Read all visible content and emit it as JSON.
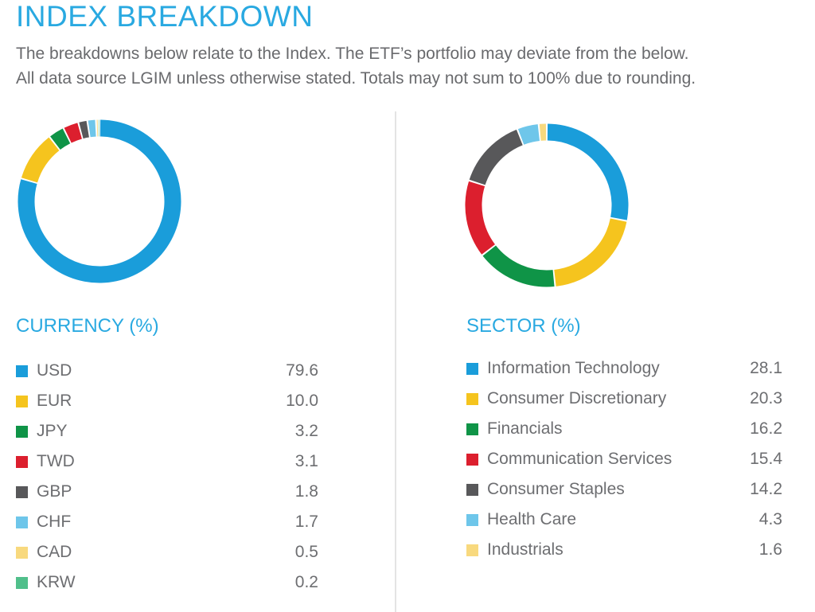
{
  "header": {
    "title": "INDEX BREAKDOWN",
    "subtitle_line1": "The breakdowns below relate to the Index. The ETF’s portfolio may deviate from the below.",
    "subtitle_line2": "All data source LGIM unless otherwise stated. Totals may not sum to 100% due to rounding."
  },
  "colors": {
    "accent": "#29A9E1",
    "text_gray": "#6D6E71",
    "divider": "#E4E4E4"
  },
  "currency": {
    "heading": "CURRENCY (%)",
    "items": [
      {
        "label": "USD",
        "value": "79.6",
        "color": "#1A9DDA"
      },
      {
        "label": "EUR",
        "value": "10.0",
        "color": "#F5C41E"
      },
      {
        "label": "JPY",
        "value": "3.2",
        "color": "#0F9447"
      },
      {
        "label": "TWD",
        "value": "3.1",
        "color": "#DC1F2E"
      },
      {
        "label": "GBP",
        "value": "1.8",
        "color": "#58585A"
      },
      {
        "label": "CHF",
        "value": "1.7",
        "color": "#6EC6EA"
      },
      {
        "label": "CAD",
        "value": "0.5",
        "color": "#F8D97E"
      },
      {
        "label": "KRW",
        "value": "0.2",
        "color": "#50BF8B"
      }
    ]
  },
  "sector": {
    "heading": "SECTOR (%)",
    "items": [
      {
        "label": "Information Technology",
        "value": "28.1",
        "color": "#1A9DDA"
      },
      {
        "label": "Consumer Discretionary",
        "value": "20.3",
        "color": "#F5C41E"
      },
      {
        "label": "Financials",
        "value": "16.2",
        "color": "#0F9447"
      },
      {
        "label": "Communication Services",
        "value": "15.4",
        "color": "#DC1F2E"
      },
      {
        "label": "Consumer Staples",
        "value": "14.2",
        "color": "#58585A"
      },
      {
        "label": "Health Care",
        "value": "4.3",
        "color": "#6EC6EA"
      },
      {
        "label": "Industrials",
        "value": "1.6",
        "color": "#F8D97E"
      }
    ]
  },
  "chart_data": [
    {
      "type": "pie",
      "subtype": "donut",
      "title": "CURRENCY (%)",
      "labels": [
        "USD",
        "EUR",
        "JPY",
        "TWD",
        "GBP",
        "CHF",
        "CAD",
        "KRW"
      ],
      "values": [
        79.6,
        10.0,
        3.2,
        3.1,
        1.8,
        1.7,
        0.5,
        0.2
      ],
      "colors": [
        "#1A9DDA",
        "#F5C41E",
        "#0F9447",
        "#DC1F2E",
        "#58585A",
        "#6EC6EA",
        "#F8D97E",
        "#50BF8B"
      ],
      "start_angle": "top",
      "direction": "clockwise",
      "legend_position": "below",
      "units": "percent"
    },
    {
      "type": "pie",
      "subtype": "donut",
      "title": "SECTOR (%)",
      "labels": [
        "Information Technology",
        "Consumer Discretionary",
        "Financials",
        "Communication Services",
        "Consumer Staples",
        "Health Care",
        "Industrials"
      ],
      "values": [
        28.1,
        20.3,
        16.2,
        15.4,
        14.2,
        4.3,
        1.6
      ],
      "colors": [
        "#1A9DDA",
        "#F5C41E",
        "#0F9447",
        "#DC1F2E",
        "#58585A",
        "#6EC6EA",
        "#F8D97E"
      ],
      "start_angle": "top",
      "direction": "clockwise",
      "legend_position": "below",
      "units": "percent"
    }
  ]
}
